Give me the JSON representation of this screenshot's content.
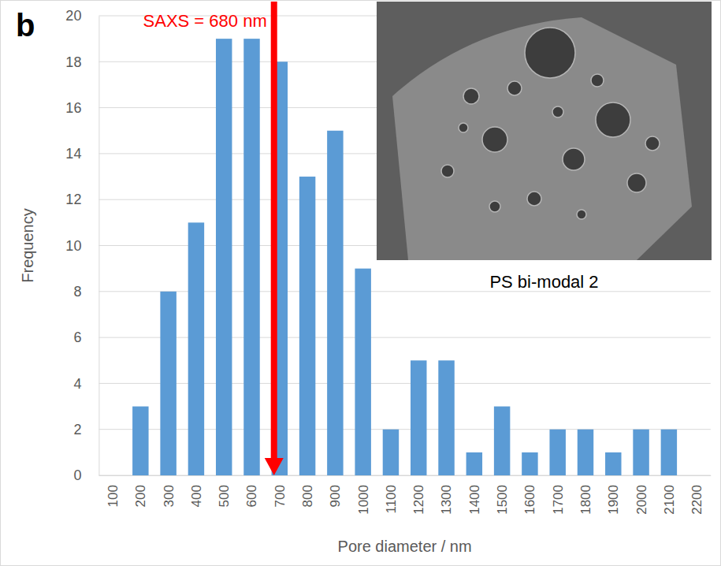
{
  "chart_data": {
    "type": "bar",
    "panel_label": "b",
    "x_label": "Pore diameter / nm",
    "y_label": "Frequency",
    "categories": [
      "100",
      "200",
      "300",
      "400",
      "500",
      "600",
      "700",
      "800",
      "900",
      "1000",
      "1100",
      "1200",
      "1300",
      "1400",
      "1500",
      "1600",
      "1700",
      "1800",
      "1900",
      "2000",
      "2100",
      "2200"
    ],
    "values": [
      0,
      3,
      8,
      11,
      19,
      19,
      18,
      13,
      15,
      9,
      2,
      5,
      5,
      1,
      3,
      1,
      2,
      2,
      1,
      2,
      2,
      0
    ],
    "color": "#5b9bd5",
    "ylim": [
      0,
      20
    ],
    "yticks": [
      0,
      2,
      4,
      6,
      8,
      10,
      12,
      14,
      16,
      18,
      20
    ],
    "grid": true,
    "annotation": {
      "text": "SAXS = 680 nm",
      "x": 680,
      "color": "#ff0000"
    },
    "inset_caption": "PS bi-modal 2"
  }
}
